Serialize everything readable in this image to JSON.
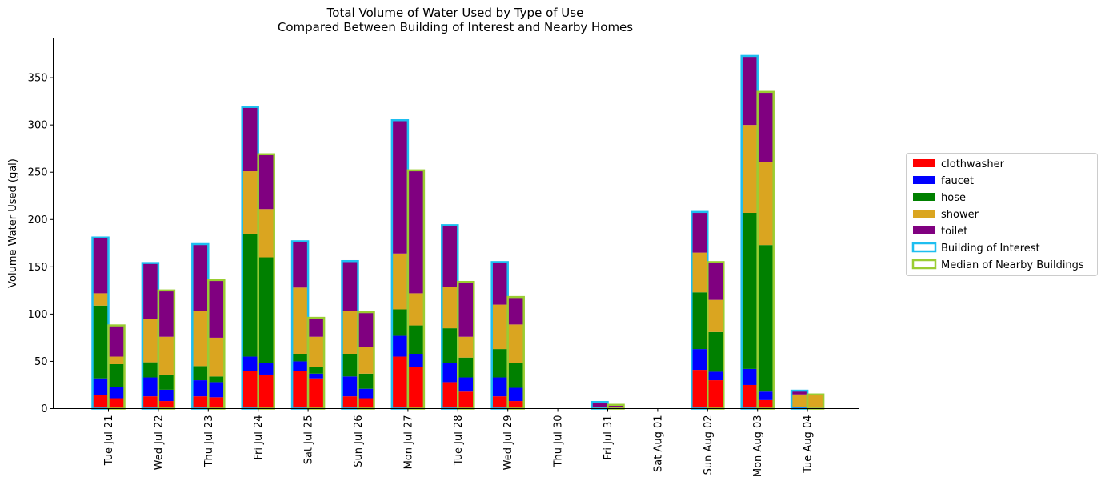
{
  "chart_data": {
    "type": "bar",
    "title": "Total Volume of Water Used by Type of Use",
    "subtitle": "Compared Between Building of Interest and Nearby Homes",
    "xlabel": "",
    "ylabel": "Volume Water Used (gal)",
    "ylim": [
      0,
      392
    ],
    "yticks": [
      0,
      50,
      100,
      150,
      200,
      250,
      300,
      350
    ],
    "grid": false,
    "legend_placement": "right",
    "categories": [
      "Tue Jul 21",
      "Wed Jul 22",
      "Thu Jul 23",
      "Fri Jul 24",
      "Sat Jul 25",
      "Sun Jul 26",
      "Mon Jul 27",
      "Tue Jul 28",
      "Wed Jul 29",
      "Thu Jul 30",
      "Fri Jul 31",
      "Sat Aug 01",
      "Sun Aug 02",
      "Mon Aug 03",
      "Tue Aug 04"
    ],
    "stack_series": [
      {
        "name": "clothwasher",
        "color": "#ff0000"
      },
      {
        "name": "faucet",
        "color": "#0000ff"
      },
      {
        "name": "hose",
        "color": "#008000"
      },
      {
        "name": "shower",
        "color": "#daa520"
      },
      {
        "name": "toilet",
        "color": "#800080"
      }
    ],
    "groups": [
      {
        "name": "Building of Interest",
        "edge_color": "#1ebef0",
        "values": {
          "clothwasher": [
            14,
            13,
            13,
            40,
            40,
            13,
            55,
            28,
            13,
            0,
            0,
            0,
            41,
            25,
            0
          ],
          "faucet": [
            18,
            20,
            17,
            15,
            10,
            21,
            22,
            20,
            20,
            0,
            1,
            0,
            22,
            17,
            2
          ],
          "hose": [
            77,
            16,
            15,
            130,
            8,
            24,
            28,
            37,
            30,
            0,
            0,
            0,
            60,
            165,
            0
          ],
          "shower": [
            13,
            46,
            58,
            66,
            70,
            45,
            59,
            44,
            47,
            0,
            1,
            0,
            42,
            93,
            13
          ],
          "toilet": [
            59,
            59,
            71,
            68,
            49,
            53,
            141,
            65,
            45,
            0,
            5,
            0,
            43,
            73,
            4
          ]
        }
      },
      {
        "name": "Median of Nearby Buildings",
        "edge_color": "#9acd32",
        "values": {
          "clothwasher": [
            11,
            8,
            12,
            36,
            32,
            11,
            44,
            18,
            8,
            0,
            0,
            0,
            30,
            9,
            0
          ],
          "faucet": [
            12,
            12,
            16,
            12,
            5,
            10,
            14,
            15,
            14,
            0,
            1,
            0,
            9,
            9,
            1
          ],
          "hose": [
            24,
            16,
            6,
            112,
            7,
            16,
            30,
            21,
            26,
            0,
            0,
            0,
            42,
            155,
            0
          ],
          "shower": [
            8,
            40,
            41,
            51,
            32,
            28,
            34,
            22,
            41,
            0,
            1,
            0,
            34,
            88,
            13
          ],
          "toilet": [
            33,
            49,
            61,
            58,
            20,
            37,
            130,
            58,
            29,
            0,
            2,
            0,
            40,
            74,
            1
          ]
        }
      }
    ]
  }
}
